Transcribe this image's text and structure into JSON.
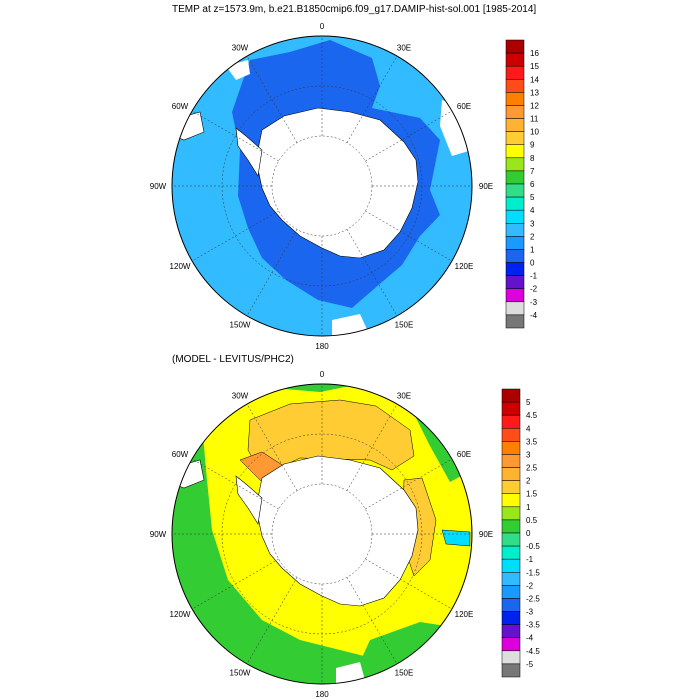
{
  "top_panel": {
    "title": "TEMP at z=1573.9m, b.e21.B1850cmip6.f09_g17.DAMIP-hist-sol.001 [1985-2014]",
    "lon_labels": [
      "0",
      "30E",
      "60E",
      "90E",
      "120E",
      "150E",
      "180",
      "150W",
      "120W",
      "90W",
      "60W",
      "30W"
    ],
    "colorbar": {
      "labels": [
        "16",
        "15",
        "14",
        "13",
        "12",
        "11",
        "10",
        "9",
        "8",
        "7",
        "6",
        "5",
        "4",
        "3",
        "2",
        "1",
        "0",
        "-1",
        "-2",
        "-3",
        "-4"
      ],
      "colors": [
        "#aa0000",
        "#cc0000",
        "#ff1a1a",
        "#ff4d1a",
        "#ff8000",
        "#ff9933",
        "#ffb333",
        "#ffcc33",
        "#ffff00",
        "#99e61a",
        "#33cc33",
        "#33dd88",
        "#00eecc",
        "#00ddff",
        "#33bbff",
        "#1a99ff",
        "#1a66ee",
        "#0022ee",
        "#6611cc",
        "#dd00dd",
        "#dddddd",
        "#777777"
      ]
    }
  },
  "bottom_panel": {
    "title": "(MODEL - LEVITUS/PHC2)",
    "lon_labels": [
      "0",
      "30E",
      "60E",
      "90E",
      "120E",
      "150E",
      "180",
      "150W",
      "120W",
      "90W",
      "60W",
      "30W"
    ],
    "colorbar": {
      "labels": [
        "5",
        "4.5",
        "4",
        "3.5",
        "3",
        "2.5",
        "2",
        "1.5",
        "1",
        "0.5",
        "0",
        "-0.5",
        "-1",
        "-1.5",
        "-2",
        "-2.5",
        "-3",
        "-3.5",
        "-4",
        "-4.5",
        "-5"
      ],
      "colors": [
        "#aa0000",
        "#cc0000",
        "#ff1a1a",
        "#ff4d1a",
        "#ff8000",
        "#ff9933",
        "#ffb333",
        "#ffcc33",
        "#ffff00",
        "#99e61a",
        "#33cc33",
        "#33dd88",
        "#00eecc",
        "#00ddff",
        "#33bbff",
        "#1a99ff",
        "#1a66ee",
        "#0022ee",
        "#6611cc",
        "#dd00dd",
        "#dddddd",
        "#777777"
      ]
    }
  },
  "map_colors": {
    "top_outer": "#33bbff",
    "top_inner": "#1a66ee",
    "bottom_outer": "#33cc33",
    "bottom_mid": "#ffff00",
    "bottom_inner": "#ffcc33",
    "bottom_warm": "#ff9933",
    "bottom_cool": "#00ddff",
    "land": "#ffffff"
  }
}
